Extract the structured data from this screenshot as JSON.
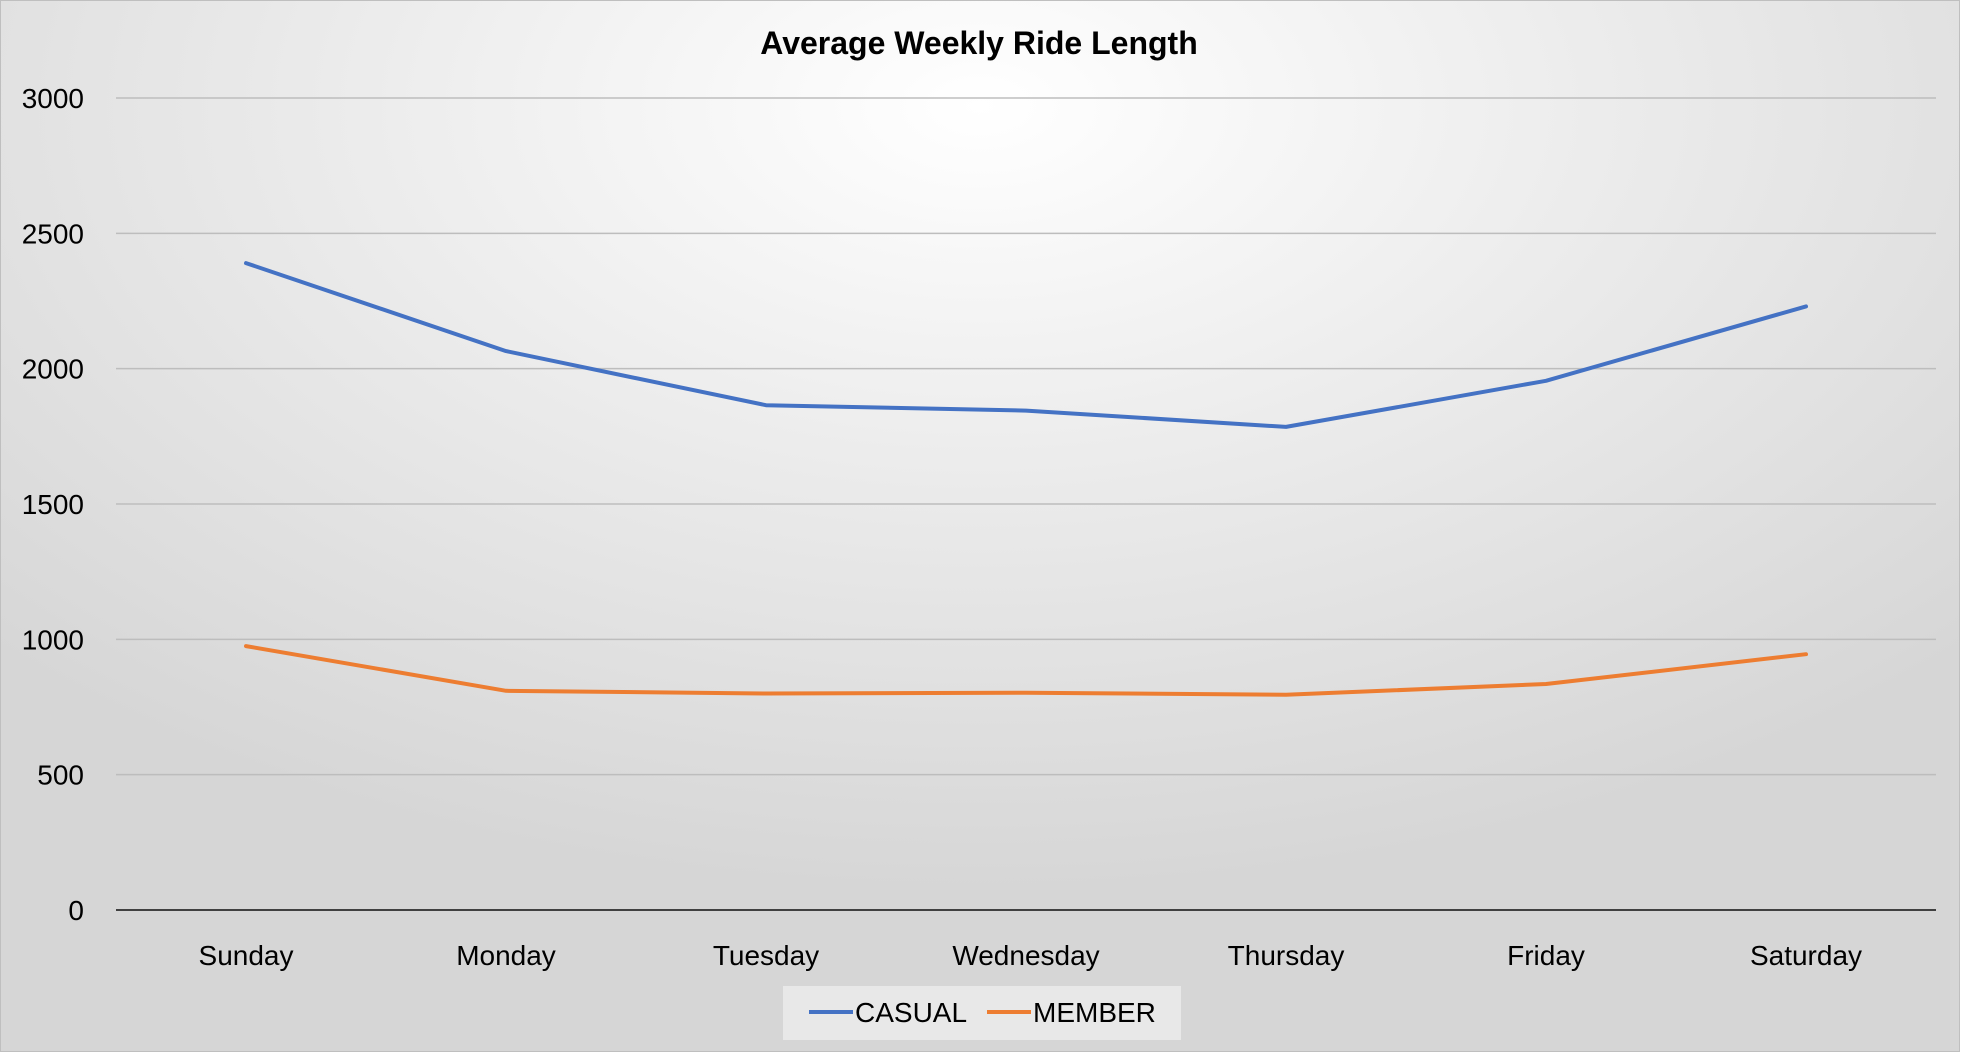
{
  "chart_data": {
    "type": "line",
    "title": "Average Weekly Ride Length",
    "xlabel": "",
    "ylabel": "",
    "categories": [
      "Sunday",
      "Monday",
      "Tuesday",
      "Wednesday",
      "Thursday",
      "Friday",
      "Saturday"
    ],
    "ylim": [
      0,
      3000
    ],
    "yticks": [
      "0",
      "500",
      "1000",
      "1500",
      "2000",
      "2500",
      "3000"
    ],
    "grid": true,
    "legend_position": "bottom",
    "series": [
      {
        "name": "CASUAL",
        "color": "#4472c4",
        "values": [
          2390,
          2065,
          1865,
          1845,
          1785,
          1955,
          2230
        ]
      },
      {
        "name": "MEMBER",
        "color": "#ed7d31",
        "values": [
          975,
          810,
          800,
          803,
          795,
          835,
          945
        ]
      }
    ]
  }
}
